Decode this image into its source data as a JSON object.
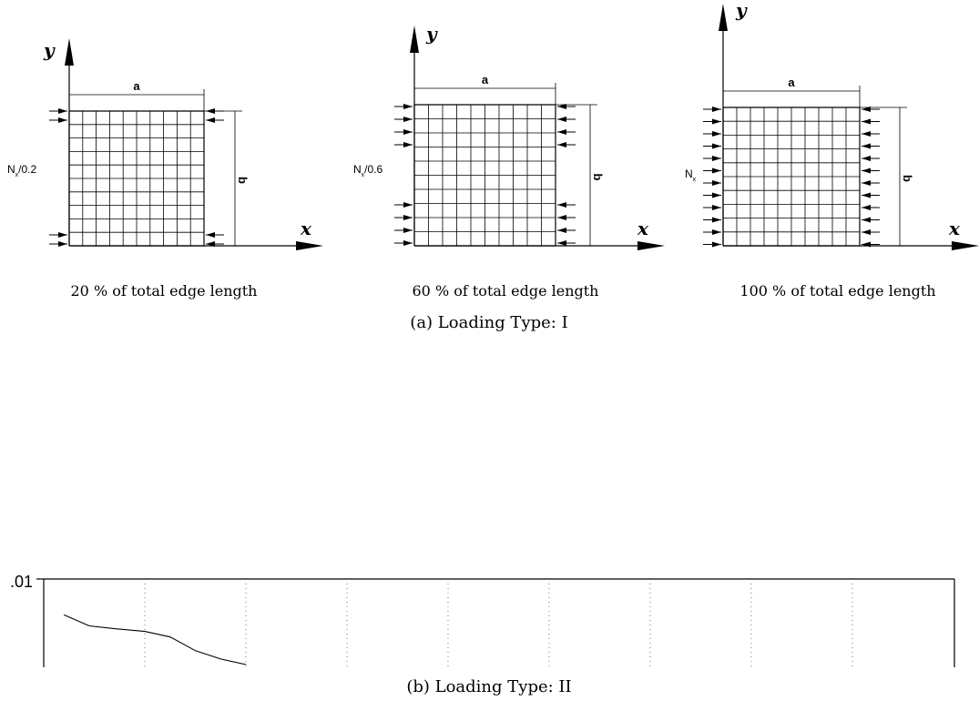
{
  "figure_a": {
    "panels": [
      {
        "id": "p20",
        "load_label_main": "N",
        "load_label_sub": "x",
        "load_label_suffix": "/0.2",
        "caption": "20 % of total edge length",
        "dim_a": "a",
        "dim_b": "b",
        "axis_x": "x",
        "axis_y": "y",
        "loaded_fraction": 0.2
      },
      {
        "id": "p60",
        "load_label_main": "N",
        "load_label_sub": "x",
        "load_label_suffix": "/0.6",
        "caption": "60 % of total edge length",
        "dim_a": "a",
        "dim_b": "b",
        "axis_x": "x",
        "axis_y": "y",
        "loaded_fraction": 0.6
      },
      {
        "id": "p100",
        "load_label_main": "N",
        "load_label_sub": "x",
        "load_label_suffix": "",
        "caption": "100 % of total edge length",
        "dim_a": "a",
        "dim_b": "b",
        "axis_x": "x",
        "axis_y": "y",
        "loaded_fraction": 1.0
      }
    ],
    "subcaption": "(a) Loading Type: I"
  },
  "figure_b": {
    "subcaption": "(b) Loading Type: II",
    "chart_data": {
      "type": "line",
      "ytick_label": ".01",
      "grid": "vertical dotted",
      "series": [
        {
          "x": [
            0.02,
            0.045,
            0.07,
            0.1,
            0.125,
            0.15,
            0.175,
            0.2
          ],
          "y": [
            0.0087,
            0.0083,
            0.0082,
            0.0081,
            0.0079,
            0.0074,
            0.0071,
            0.0069
          ]
        }
      ]
    }
  }
}
